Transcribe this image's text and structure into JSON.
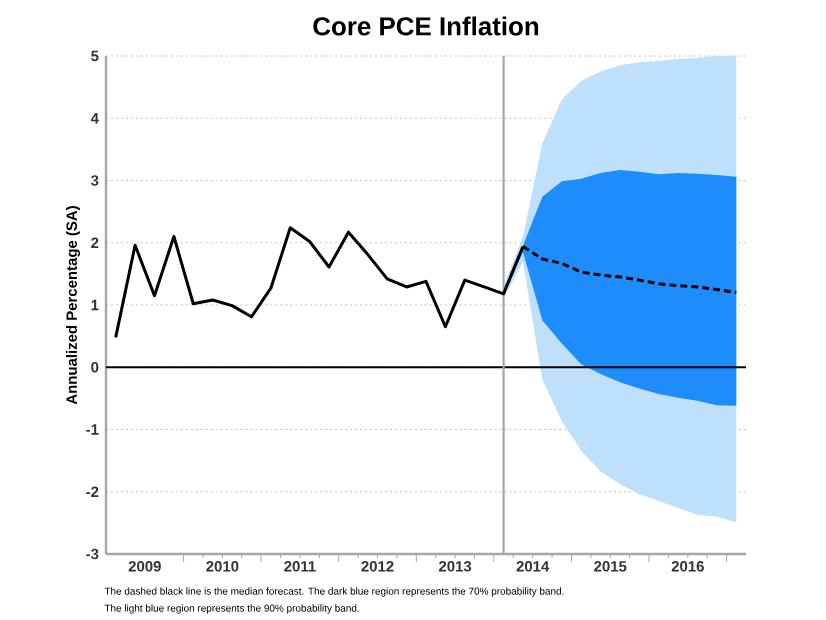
{
  "chart_data": {
    "type": "line",
    "title": "Core PCE Inflation",
    "ylabel": "Annualized Percentage (SA)",
    "annotations": [
      "The dashed black line is the median forecast. The dark blue region represents the 70% probability band.",
      "The light blue region represents the 90% probability band."
    ],
    "xlim": [
      2009.0,
      2017.25
    ],
    "ylim": [
      -3,
      5
    ],
    "yticks": [
      -3,
      -2,
      -1,
      0,
      1,
      2,
      3,
      4,
      5
    ],
    "xticks": [
      {
        "value": 2009.5,
        "label": "2009"
      },
      {
        "value": 2010.5,
        "label": "2010"
      },
      {
        "value": 2011.5,
        "label": "2011"
      },
      {
        "value": 2012.5,
        "label": "2012"
      },
      {
        "value": 2013.5,
        "label": "2013"
      },
      {
        "value": 2014.5,
        "label": "2014"
      },
      {
        "value": 2015.5,
        "label": "2015"
      },
      {
        "value": 2016.5,
        "label": "2016"
      },
      {
        "value": 2010,
        "label": null
      },
      {
        "value": 2011,
        "label": null
      },
      {
        "value": 2012,
        "label": null
      },
      {
        "value": 2013,
        "label": null
      },
      {
        "value": 2014,
        "label": null
      },
      {
        "value": 2015,
        "label": null
      },
      {
        "value": 2016,
        "label": null
      },
      {
        "value": 2017,
        "label": null
      }
    ],
    "grid": "y",
    "marker": "none",
    "ref_lines": [
      {
        "axis": "y",
        "value": 0,
        "color": "#000000"
      },
      {
        "axis": "x",
        "value": 2014.125,
        "color": "#a6a6a6"
      }
    ],
    "series": [
      {
        "color": "#bfe0fb",
        "x": [
          2014.125,
          2014.375,
          2014.625,
          2014.875,
          2015.125,
          2015.375,
          2015.625,
          2015.875,
          2016.125,
          2016.375,
          2016.625,
          2016.875,
          2017.125
        ],
        "values": [
          null,
          null,
          null,
          null,
          null,
          null,
          null,
          null,
          null,
          null,
          null,
          null,
          null
        ],
        "lower": [
          1.1,
          1.7,
          -0.2,
          -0.86,
          -1.34,
          -1.67,
          -1.88,
          -2.04,
          -2.15,
          -2.26,
          -2.37,
          -2.4,
          -2.49
        ],
        "upper": [
          1.3,
          2.1,
          3.6,
          4.3,
          4.6,
          4.75,
          4.85,
          4.9,
          4.92,
          4.95,
          4.97,
          5.0,
          5.0
        ]
      },
      {
        "color": "#1e8cfa",
        "x": [
          2014.125,
          2014.375,
          2014.625,
          2014.875,
          2015.125,
          2015.375,
          2015.625,
          2015.875,
          2016.125,
          2016.375,
          2016.625,
          2016.875,
          2017.125
        ],
        "values": [
          null,
          null,
          null,
          null,
          null,
          null,
          null,
          null,
          null,
          null,
          null,
          null,
          null
        ],
        "lower": [
          1.15,
          1.85,
          0.75,
          0.38,
          0.05,
          -0.11,
          -0.24,
          -0.34,
          -0.43,
          -0.49,
          -0.54,
          -0.61,
          -0.62
        ],
        "upper": [
          1.25,
          1.95,
          2.74,
          2.99,
          3.03,
          3.12,
          3.17,
          3.14,
          3.1,
          3.12,
          3.11,
          3.09,
          3.06
        ]
      },
      {
        "color": "#000000",
        "line_style": "solid",
        "x": [
          2009.125,
          2009.375,
          2009.625,
          2009.875,
          2010.125,
          2010.375,
          2010.625,
          2010.875,
          2011.125,
          2011.375,
          2011.625,
          2011.875,
          2012.125,
          2012.375,
          2012.625,
          2012.875,
          2013.125,
          2013.375,
          2013.625,
          2013.875,
          2014.125,
          2014.375
        ],
        "values": [
          0.48,
          1.96,
          1.15,
          2.1,
          1.02,
          1.08,
          0.99,
          0.81,
          1.27,
          2.24,
          2.02,
          1.61,
          2.17,
          1.81,
          1.42,
          1.29,
          1.38,
          0.65,
          1.4,
          1.29,
          1.18,
          1.94
        ]
      },
      {
        "color": "#000000",
        "line_style": "dashed",
        "x": [
          2014.375,
          2014.625,
          2014.875,
          2015.125,
          2015.375,
          2015.625,
          2015.875,
          2016.125,
          2016.375,
          2016.625,
          2016.875,
          2017.125
        ],
        "values": [
          1.94,
          1.74,
          1.67,
          1.53,
          1.48,
          1.45,
          1.4,
          1.34,
          1.31,
          1.29,
          1.25,
          1.2
        ]
      }
    ]
  }
}
